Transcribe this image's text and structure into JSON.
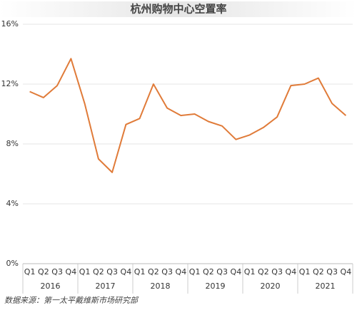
{
  "chart_data": {
    "type": "line",
    "title": "杭州购物中心空置率",
    "categories": [
      "Q1",
      "Q2",
      "Q3",
      "Q4",
      "Q1",
      "Q2",
      "Q3",
      "Q4",
      "Q1",
      "Q2",
      "Q3",
      "Q4",
      "Q1",
      "Q2",
      "Q3",
      "Q4",
      "Q1",
      "Q2",
      "Q3",
      "Q4",
      "Q1",
      "Q2",
      "Q3",
      "Q4"
    ],
    "category_groups": [
      "2016",
      "2017",
      "2018",
      "2019",
      "2020",
      "2021"
    ],
    "series": [
      {
        "color": "#e07b39",
        "values": [
          11.5,
          11.1,
          11.9,
          13.7,
          10.7,
          7.0,
          6.1,
          9.3,
          9.7,
          12.0,
          10.4,
          9.9,
          10.0,
          9.5,
          9.2,
          8.3,
          8.6,
          9.1,
          9.8,
          11.9,
          12.0,
          12.4,
          10.7,
          9.9
        ]
      }
    ],
    "ylim": [
      0,
      16
    ],
    "yticks": [
      {
        "value": 0,
        "label": "0%"
      },
      {
        "value": 4,
        "label": "4%"
      },
      {
        "value": 8,
        "label": "8%"
      },
      {
        "value": 12,
        "label": "12%"
      },
      {
        "value": 16,
        "label": "16%"
      }
    ],
    "grid": true,
    "source": "数据来源：第一太平戴维斯市场研究部"
  }
}
